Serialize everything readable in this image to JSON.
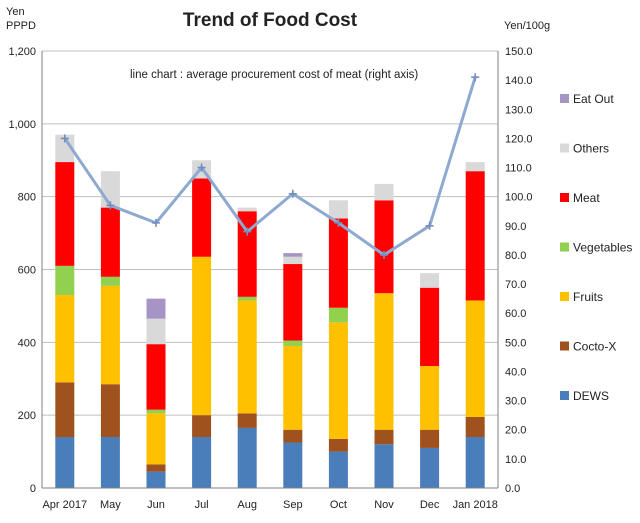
{
  "chart_data": {
    "type": "bar",
    "title": "Trend of Food Cost",
    "left_axis_label_line1": "Yen",
    "left_axis_label_line2": "PPPD",
    "right_axis_label": "Yen/100g",
    "annotation": "line chart : average procurement cost of meat (right axis)",
    "categories": [
      "Apr 2017",
      "May",
      "Jun",
      "Jul",
      "Aug",
      "Sep",
      "Oct",
      "Nov",
      "Dec",
      "Jan 2018"
    ],
    "ylim": [
      0,
      1200
    ],
    "y2lim": [
      0,
      150
    ],
    "yticks": [
      "0",
      "200",
      "400",
      "600",
      "800",
      "1,000",
      "1,200"
    ],
    "y2ticks": [
      "0.0",
      "10.0",
      "20.0",
      "30.0",
      "40.0",
      "50.0",
      "60.0",
      "70.0",
      "80.0",
      "90.0",
      "100.0",
      "110.0",
      "120.0",
      "130.0",
      "140.0",
      "150.0"
    ],
    "grid": true,
    "legend_position": "right",
    "stacked": true,
    "series": [
      {
        "name": "DEWS",
        "color": "#4a7ebb",
        "values": [
          140,
          140,
          45,
          140,
          165,
          125,
          100,
          120,
          110,
          140
        ]
      },
      {
        "name": "Cocto-X",
        "color": "#a0521e",
        "values": [
          150,
          145,
          20,
          60,
          40,
          35,
          35,
          40,
          50,
          55
        ]
      },
      {
        "name": "Fruits",
        "color": "#ffc000",
        "values": [
          240,
          270,
          140,
          435,
          310,
          230,
          320,
          375,
          175,
          320
        ]
      },
      {
        "name": "Vegetables",
        "color": "#92d050",
        "values": [
          80,
          25,
          10,
          0,
          10,
          15,
          40,
          0,
          0,
          0
        ]
      },
      {
        "name": "Meat",
        "color": "#ff0000",
        "values": [
          285,
          190,
          180,
          215,
          235,
          210,
          245,
          255,
          215,
          355
        ]
      },
      {
        "name": "Others",
        "color": "#d9d9d9",
        "values": [
          75,
          100,
          70,
          50,
          10,
          20,
          50,
          45,
          40,
          25
        ]
      },
      {
        "name": "Eat Out",
        "color": "#a694c4",
        "values": [
          0,
          0,
          55,
          0,
          0,
          10,
          0,
          0,
          0,
          0
        ]
      }
    ],
    "line_series": {
      "name": "average procurement cost of meat",
      "axis": "right",
      "color": "#8ea9d0",
      "values": [
        120,
        97,
        91,
        110,
        88,
        101,
        91,
        80,
        90,
        141
      ]
    }
  }
}
